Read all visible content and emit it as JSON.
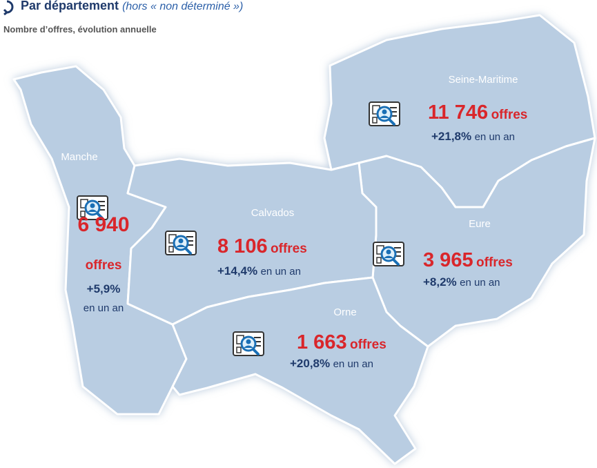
{
  "header": {
    "title": "Par département",
    "title_note": "(hors « non déterminé »)",
    "subtitle": "Nombre d’offres, évolution annuelle"
  },
  "regions": [
    {
      "name": "Seine-Maritime",
      "offers": "11 746",
      "offers_unit": "offres",
      "change": "+21,8%",
      "change_suffix": "en un an"
    },
    {
      "name": "Manche",
      "offers": "6 940",
      "offers_unit": "offres",
      "change": "+5,9%",
      "change_suffix": "en un an"
    },
    {
      "name": "Calvados",
      "offers": "8 106",
      "offers_unit": "offres",
      "change": "+14,4%",
      "change_suffix": "en un an"
    },
    {
      "name": "Eure",
      "offers": "3 965",
      "offers_unit": "offres",
      "change": "+8,2%",
      "change_suffix": "en un an"
    },
    {
      "name": "Orne",
      "offers": "1 663",
      "offers_unit": "offres",
      "change": "+20,8%",
      "change_suffix": "en un an"
    }
  ]
}
